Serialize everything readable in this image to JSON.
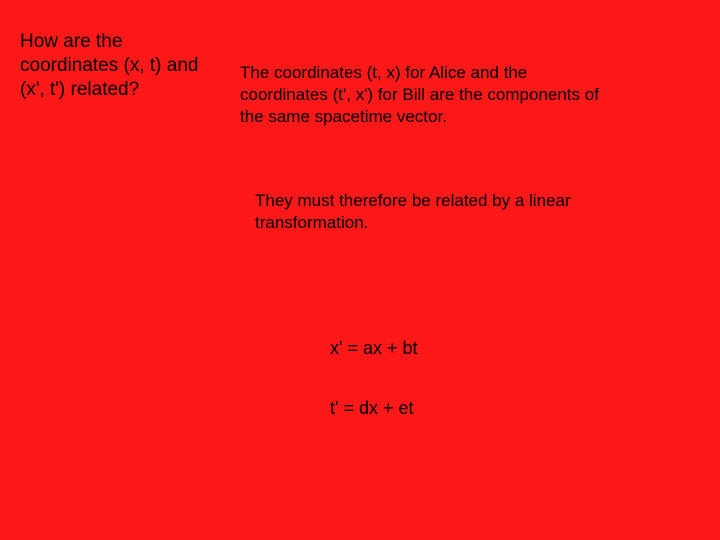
{
  "slide": {
    "background_color": "#ff1818",
    "text_color": "#000000",
    "question": "How are the coordinates (x, t) and (x', t') related?",
    "paragraph1": "The coordinates (t, x) for Alice and the coordinates (t', x') for Bill are the components of the same spacetime vector.",
    "paragraph2": "They must therefore be related by a linear transformation.",
    "equation1": "x'  =  ax + bt",
    "equation2": "t'   =  dx + et"
  }
}
